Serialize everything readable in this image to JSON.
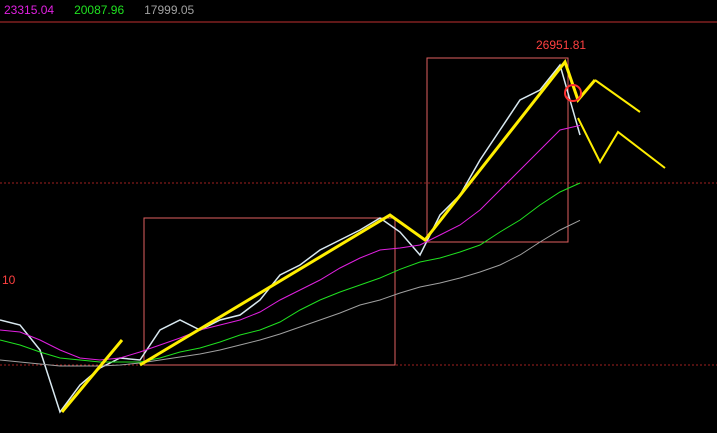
{
  "chart_data": {
    "type": "line",
    "annotations": {
      "peak": "26951.81",
      "left": "10"
    },
    "categories": [
      null,
      null,
      null,
      null,
      null,
      null,
      null,
      null,
      null,
      null,
      null,
      null,
      null,
      null,
      null,
      null,
      null,
      null,
      null,
      null,
      null,
      null,
      null,
      null,
      null,
      null,
      null,
      null,
      null,
      null
    ],
    "ylim": [
      6088,
      29104
    ],
    "series": [
      {
        "color": "#d8e8f0",
        "values": [
          12416,
          12136,
          10736,
          7264,
          8776,
          9728,
          10288,
          10176,
          11856,
          12416,
          11856,
          12416,
          12696,
          13536,
          14936,
          15496,
          16336,
          16896,
          17456,
          18128,
          17344,
          16056,
          18296,
          19416,
          21376,
          23056,
          24736,
          25296,
          26696,
          22776
        ]
      },
      {
        "name": "23315.04",
        "color": "#e020e0",
        "values": [
          11856,
          11744,
          11296,
          10736,
          10288,
          10176,
          10288,
          10624,
          11016,
          11408,
          11856,
          12136,
          12416,
          12864,
          13536,
          14096,
          14656,
          15328,
          15888,
          16336,
          16448,
          16616,
          17176,
          17736,
          18576,
          19696,
          20816,
          21936,
          23056,
          23315.04
        ]
      },
      {
        "name": "20087.96",
        "color": "#20e020",
        "values": [
          11296,
          11016,
          10624,
          10288,
          10176,
          10064,
          10064,
          10064,
          10288,
          10624,
          10848,
          11184,
          11576,
          11856,
          12304,
          12976,
          13536,
          13984,
          14376,
          14768,
          15256,
          15664,
          15888,
          16224,
          16616,
          17344,
          18016,
          18856,
          19584,
          20087.96
        ]
      },
      {
        "name": "17999.05",
        "color": "#a0a0a0",
        "values": [
          10176,
          10064,
          9952,
          9840,
          9840,
          9840,
          9896,
          10008,
          10176,
          10344,
          10512,
          10736,
          11016,
          11296,
          11632,
          12024,
          12416,
          12808,
          13256,
          13536,
          13928,
          14264,
          14488,
          14768,
          15104,
          15496,
          16056,
          16784,
          17456,
          17999.05
        ]
      }
    ]
  }
}
